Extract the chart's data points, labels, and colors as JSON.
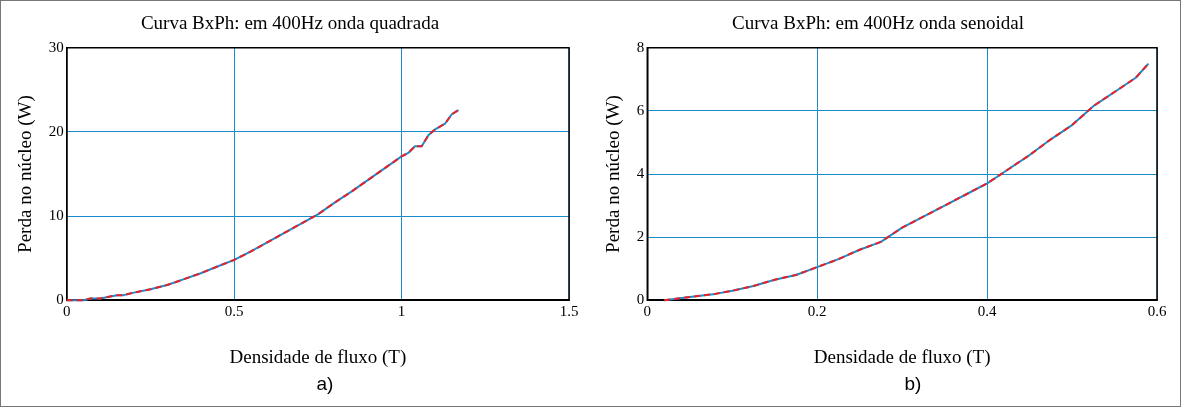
{
  "chart_data": [
    {
      "type": "line",
      "title": "Curva BxPh: em 400Hz onda quadrada",
      "xlabel": "Densidade de fluxo (T)",
      "ylabel": "Perda no núcleo (W)",
      "annotations": [
        "a)"
      ],
      "x": [
        0,
        0.05,
        0.07,
        0.1,
        0.15,
        0.17,
        0.2,
        0.25,
        0.3,
        0.35,
        0.4,
        0.45,
        0.5,
        0.55,
        0.6,
        0.65,
        0.7,
        0.75,
        0.8,
        0.85,
        0.9,
        0.95,
        1.0,
        1.02,
        1.04,
        1.06,
        1.08,
        1.1,
        1.13,
        1.15,
        1.17
      ],
      "series": [
        {
          "color": "#1a8ccc",
          "line_style": "solid",
          "values": [
            0,
            0,
            0.2,
            0.2,
            0.6,
            0.6,
            0.9,
            1.3,
            1.8,
            2.5,
            3.2,
            4.0,
            4.8,
            5.8,
            6.9,
            8.0,
            9.1,
            10.2,
            11.6,
            12.9,
            14.3,
            15.7,
            17.1,
            17.5,
            18.3,
            18.3,
            19.6,
            20.3,
            21.0,
            22.1,
            22.6
          ]
        },
        {
          "color": "#e8202a",
          "line_style": "dashed",
          "values": [
            0,
            0,
            0.2,
            0.2,
            0.6,
            0.6,
            0.9,
            1.3,
            1.8,
            2.5,
            3.2,
            4.0,
            4.8,
            5.8,
            6.9,
            8.0,
            9.1,
            10.2,
            11.6,
            12.9,
            14.3,
            15.7,
            17.1,
            17.5,
            18.3,
            18.3,
            19.6,
            20.3,
            21.0,
            22.1,
            22.6
          ]
        }
      ],
      "xlim": [
        0,
        1.5
      ],
      "xticks": [
        0,
        0.5,
        1,
        1.5
      ],
      "ylim": [
        0,
        30
      ],
      "yticks": [
        0,
        10,
        20,
        30
      ],
      "grid": true,
      "legend": false,
      "marker": "none"
    },
    {
      "type": "line",
      "title": "Curva BxPh: em 400Hz onda senoidal",
      "xlabel": "Densidade de fluxo (T)",
      "ylabel": "Perda no núcleo (W)",
      "annotations": [
        "b)"
      ],
      "x": [
        0.02,
        0.05,
        0.08,
        0.1,
        0.125,
        0.15,
        0.175,
        0.2,
        0.225,
        0.25,
        0.275,
        0.3,
        0.325,
        0.35,
        0.375,
        0.4,
        0.425,
        0.45,
        0.475,
        0.5,
        0.525,
        0.55,
        0.575,
        0.59
      ],
      "series": [
        {
          "color": "#1a8ccc",
          "line_style": "solid",
          "values": [
            0,
            0.1,
            0.2,
            0.3,
            0.45,
            0.65,
            0.8,
            1.05,
            1.3,
            1.6,
            1.85,
            2.3,
            2.65,
            3.0,
            3.35,
            3.7,
            4.15,
            4.6,
            5.1,
            5.55,
            6.15,
            6.6,
            7.05,
            7.5
          ]
        },
        {
          "color": "#e8202a",
          "line_style": "dashed",
          "values": [
            0,
            0.1,
            0.2,
            0.3,
            0.45,
            0.65,
            0.8,
            1.05,
            1.3,
            1.6,
            1.85,
            2.3,
            2.65,
            3.0,
            3.35,
            3.7,
            4.15,
            4.6,
            5.1,
            5.55,
            6.15,
            6.6,
            7.05,
            7.5
          ]
        }
      ],
      "xlim": [
        0,
        0.6
      ],
      "xticks": [
        0,
        0.2,
        0.4,
        0.6
      ],
      "ylim": [
        0,
        8
      ],
      "yticks": [
        0,
        2,
        4,
        6,
        8
      ],
      "grid": true,
      "legend": false,
      "marker": "none"
    }
  ]
}
